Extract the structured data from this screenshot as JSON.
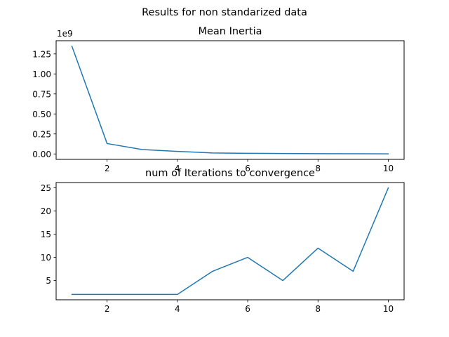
{
  "suptitle": "Results for non standarized data",
  "chart_data": [
    {
      "type": "line",
      "title": "Mean Inertia",
      "xlabel": "",
      "ylabel": "",
      "y_offset_label": "1e9",
      "xlim": [
        0.55,
        10.45
      ],
      "ylim": [
        -0.068,
        1.415
      ],
      "x_ticks": [
        2,
        4,
        6,
        8,
        10
      ],
      "x_tick_labels": [
        "2",
        "4",
        "6",
        "8",
        "10"
      ],
      "y_ticks": [
        0.0,
        0.25,
        0.5,
        0.75,
        1.0,
        1.25
      ],
      "y_tick_labels": [
        "0.00",
        "0.25",
        "0.50",
        "0.75",
        "1.00",
        "1.25"
      ],
      "grid": false,
      "color": "#1f77b4",
      "series": [
        {
          "x": [
            1,
            2,
            3,
            4,
            5,
            6,
            7,
            8,
            9,
            10
          ],
          "y": [
            1.345,
            0.13,
            0.055,
            0.032,
            0.012,
            0.008,
            0.005,
            0.003,
            0.002,
            0.001
          ]
        }
      ]
    },
    {
      "type": "line",
      "title": "num of Iterations to convergence",
      "xlabel": "",
      "ylabel": "",
      "xlim": [
        0.55,
        10.45
      ],
      "ylim": [
        0.85,
        26.15
      ],
      "x_ticks": [
        2,
        4,
        6,
        8,
        10
      ],
      "x_tick_labels": [
        "2",
        "4",
        "6",
        "8",
        "10"
      ],
      "y_ticks": [
        5,
        10,
        15,
        20,
        25
      ],
      "y_tick_labels": [
        "5",
        "10",
        "15",
        "20",
        "25"
      ],
      "grid": false,
      "color": "#1f77b4",
      "series": [
        {
          "x": [
            1,
            2,
            3,
            4,
            5,
            6,
            7,
            8,
            9,
            10
          ],
          "y": [
            2,
            2,
            2,
            2,
            7,
            10,
            5,
            12,
            7,
            25
          ]
        }
      ]
    }
  ]
}
